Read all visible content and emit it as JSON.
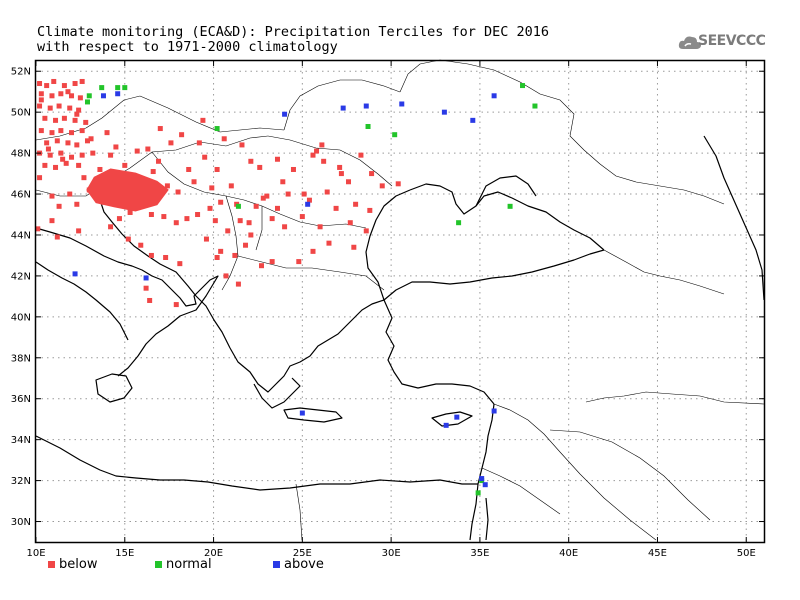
{
  "title_line1": "Climate monitoring (ECA&D): Precipitation Terciles for DEC 2016",
  "title_line2": "with respect to 1971-2000 climatology",
  "logo_text": "SEEVCCC",
  "colors": {
    "below": "#f04646",
    "normal": "#22c42a",
    "above": "#2a3ae6",
    "coast": "#000000",
    "grid": "#9a9a9a"
  },
  "legend": [
    {
      "key": "below",
      "label": "below"
    },
    {
      "key": "normal",
      "label": "normal"
    },
    {
      "key": "above",
      "label": "above"
    }
  ],
  "lon_ticks": [
    "10E",
    "15E",
    "20E",
    "25E",
    "30E",
    "35E",
    "40E",
    "45E",
    "50E"
  ],
  "lat_ticks": [
    "30N",
    "32N",
    "34N",
    "36N",
    "38N",
    "40N",
    "42N",
    "44N",
    "46N",
    "48N",
    "50N",
    "52N"
  ],
  "map_extent": {
    "lon": [
      10,
      51
    ],
    "lat": [
      29,
      52.5
    ]
  },
  "stations": {
    "below": [
      [
        10.2,
        51.4
      ],
      [
        10.6,
        51.3
      ],
      [
        11.0,
        51.5
      ],
      [
        11.6,
        51.3
      ],
      [
        12.2,
        51.4
      ],
      [
        12.6,
        51.5
      ],
      [
        10.3,
        50.9
      ],
      [
        10.9,
        50.8
      ],
      [
        11.4,
        50.9
      ],
      [
        12.0,
        50.8
      ],
      [
        12.5,
        50.7
      ],
      [
        10.2,
        50.3
      ],
      [
        10.8,
        50.2
      ],
      [
        11.3,
        50.3
      ],
      [
        11.9,
        50.2
      ],
      [
        12.4,
        50.1
      ],
      [
        10.5,
        49.7
      ],
      [
        11.1,
        49.6
      ],
      [
        11.6,
        49.7
      ],
      [
        12.2,
        49.6
      ],
      [
        12.8,
        49.5
      ],
      [
        10.3,
        49.1
      ],
      [
        10.9,
        49.0
      ],
      [
        11.4,
        49.1
      ],
      [
        12.0,
        49.0
      ],
      [
        12.6,
        49.1
      ],
      [
        10.6,
        48.5
      ],
      [
        11.2,
        48.6
      ],
      [
        11.8,
        48.5
      ],
      [
        12.3,
        48.4
      ],
      [
        12.9,
        48.6
      ],
      [
        10.2,
        48.0
      ],
      [
        10.8,
        47.9
      ],
      [
        11.4,
        48.0
      ],
      [
        12.0,
        47.8
      ],
      [
        12.6,
        47.9
      ],
      [
        10.5,
        47.4
      ],
      [
        11.1,
        47.3
      ],
      [
        11.7,
        47.5
      ],
      [
        10.2,
        46.8
      ],
      [
        10.3,
        50.6
      ],
      [
        11.8,
        51.0
      ],
      [
        12.3,
        49.9
      ],
      [
        10.7,
        48.2
      ],
      [
        11.5,
        47.7
      ],
      [
        12.4,
        47.4
      ],
      [
        13.1,
        48.7
      ],
      [
        13.2,
        48.0
      ],
      [
        13.6,
        47.2
      ],
      [
        14.2,
        47.9
      ],
      [
        15.0,
        47.4
      ],
      [
        15.7,
        48.1
      ],
      [
        16.3,
        48.2
      ],
      [
        16.9,
        47.6
      ],
      [
        17.6,
        48.5
      ],
      [
        18.2,
        48.9
      ],
      [
        19.2,
        48.5
      ],
      [
        20.6,
        48.7
      ],
      [
        21.6,
        48.4
      ],
      [
        22.1,
        47.6
      ],
      [
        20.2,
        47.2
      ],
      [
        19.5,
        47.8
      ],
      [
        18.9,
        46.6
      ],
      [
        18.0,
        46.1
      ],
      [
        19.9,
        46.3
      ],
      [
        21.0,
        46.4
      ],
      [
        22.6,
        47.3
      ],
      [
        23.6,
        47.7
      ],
      [
        24.5,
        47.2
      ],
      [
        25.6,
        47.9
      ],
      [
        26.2,
        47.6
      ],
      [
        27.1,
        47.3
      ],
      [
        27.6,
        46.6
      ],
      [
        26.4,
        46.1
      ],
      [
        25.1,
        46.0
      ],
      [
        23.9,
        46.6
      ],
      [
        23.0,
        45.9
      ],
      [
        22.4,
        45.4
      ],
      [
        21.3,
        45.5
      ],
      [
        20.4,
        45.6
      ],
      [
        19.8,
        45.3
      ],
      [
        19.1,
        45.0
      ],
      [
        18.5,
        44.8
      ],
      [
        17.9,
        44.6
      ],
      [
        17.2,
        44.9
      ],
      [
        16.5,
        45.0
      ],
      [
        15.9,
        45.5
      ],
      [
        15.3,
        45.1
      ],
      [
        14.7,
        44.8
      ],
      [
        14.2,
        44.4
      ],
      [
        13.8,
        45.6
      ],
      [
        12.3,
        45.5
      ],
      [
        11.3,
        45.4
      ],
      [
        10.9,
        44.7
      ],
      [
        10.1,
        44.3
      ],
      [
        11.2,
        43.9
      ],
      [
        12.4,
        44.2
      ],
      [
        15.2,
        43.8
      ],
      [
        15.9,
        43.5
      ],
      [
        16.5,
        43.0
      ],
      [
        17.3,
        42.9
      ],
      [
        18.1,
        42.6
      ],
      [
        20.1,
        44.7
      ],
      [
        20.8,
        44.2
      ],
      [
        21.5,
        44.7
      ],
      [
        22.1,
        44.0
      ],
      [
        21.8,
        43.5
      ],
      [
        21.2,
        43.0
      ],
      [
        20.4,
        43.2
      ],
      [
        19.6,
        43.8
      ],
      [
        20.2,
        42.9
      ],
      [
        20.7,
        42.0
      ],
      [
        21.4,
        41.6
      ],
      [
        22.7,
        42.5
      ],
      [
        23.3,
        42.7
      ],
      [
        24.8,
        42.7
      ],
      [
        25.6,
        43.2
      ],
      [
        26.5,
        43.6
      ],
      [
        27.9,
        43.4
      ],
      [
        28.6,
        44.2
      ],
      [
        27.7,
        44.6
      ],
      [
        26.0,
        44.4
      ],
      [
        25.0,
        44.9
      ],
      [
        24.0,
        44.4
      ],
      [
        23.3,
        44.8
      ],
      [
        22.8,
        45.8
      ],
      [
        25.4,
        45.7
      ],
      [
        26.9,
        45.3
      ],
      [
        28.0,
        45.5
      ],
      [
        28.8,
        45.2
      ],
      [
        29.5,
        46.4
      ],
      [
        30.4,
        46.5
      ],
      [
        28.9,
        47.0
      ],
      [
        28.3,
        47.9
      ],
      [
        27.2,
        47.0
      ],
      [
        26.1,
        48.4
      ],
      [
        25.8,
        48.1
      ],
      [
        24.2,
        46.0
      ],
      [
        23.6,
        45.3
      ],
      [
        22.0,
        44.6
      ],
      [
        16.2,
        41.4
      ],
      [
        16.4,
        40.8
      ],
      [
        17.9,
        40.6
      ],
      [
        13.0,
        46.2
      ],
      [
        14.0,
        46.6
      ],
      [
        12.7,
        46.8
      ],
      [
        11.9,
        46.0
      ],
      [
        10.9,
        45.9
      ],
      [
        18.6,
        47.2
      ],
      [
        17.4,
        46.4
      ],
      [
        15.8,
        46.7
      ],
      [
        16.6,
        47.1
      ],
      [
        14.5,
        48.3
      ],
      [
        14.0,
        49.0
      ],
      [
        17.0,
        49.2
      ],
      [
        19.4,
        49.6
      ]
    ],
    "normal": [
      [
        13.0,
        50.8
      ],
      [
        13.7,
        51.2
      ],
      [
        14.6,
        51.2
      ],
      [
        15.0,
        51.2
      ],
      [
        12.9,
        50.5
      ],
      [
        20.2,
        49.2
      ],
      [
        21.4,
        45.4
      ],
      [
        28.7,
        49.3
      ],
      [
        30.2,
        48.9
      ],
      [
        33.8,
        44.6
      ],
      [
        36.7,
        45.4
      ],
      [
        35.1,
        32.0
      ],
      [
        34.9,
        31.4
      ],
      [
        37.4,
        51.3
      ],
      [
        38.1,
        50.3
      ]
    ],
    "above": [
      [
        12.2,
        42.1
      ],
      [
        13.8,
        50.8
      ],
      [
        14.6,
        50.9
      ],
      [
        16.2,
        41.9
      ],
      [
        24.0,
        49.9
      ],
      [
        25.3,
        45.5
      ],
      [
        27.3,
        50.2
      ],
      [
        28.6,
        50.3
      ],
      [
        30.6,
        50.4
      ],
      [
        33.0,
        50.0
      ],
      [
        34.6,
        49.6
      ],
      [
        35.8,
        50.8
      ],
      [
        25.0,
        35.3
      ],
      [
        33.1,
        34.7
      ],
      [
        33.7,
        35.1
      ],
      [
        35.1,
        32.1
      ],
      [
        35.3,
        31.8
      ],
      [
        35.8,
        35.4
      ]
    ]
  }
}
